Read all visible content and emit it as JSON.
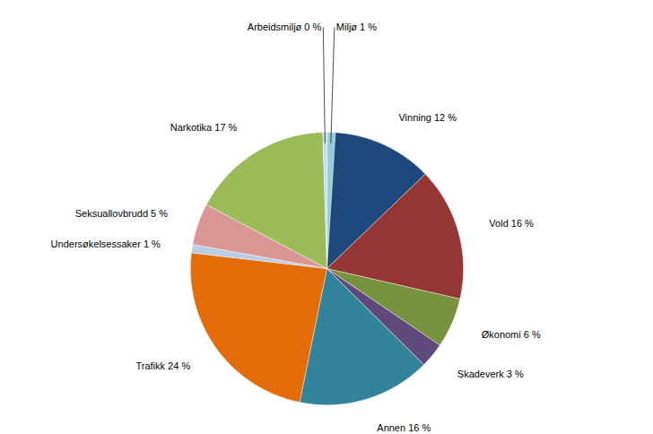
{
  "chart_data": {
    "type": "pie",
    "categories": [
      "Miljø 1 %",
      "Vinning 12 %",
      "Vold 16 %",
      "Økonomi 6 %",
      "Skadeverk 3 %",
      "Annen 16 %",
      "Trafikk 24 %",
      "Undersøkelsessaker 1 %",
      "Seksuallovbrudd 5 %",
      "Narkotika 17 %",
      "Arbeidsmiljø 0 %"
    ],
    "values": [
      1,
      12,
      16,
      6,
      3,
      16,
      24,
      1,
      5,
      17,
      0.5
    ],
    "colors": [
      "#92CDDC",
      "#1F497D",
      "#943634",
      "#76923C",
      "#604A7B",
      "#31849B",
      "#E36C09",
      "#B8CCE4",
      "#D99694",
      "#9BBB59",
      "#C6D9F1"
    ]
  }
}
